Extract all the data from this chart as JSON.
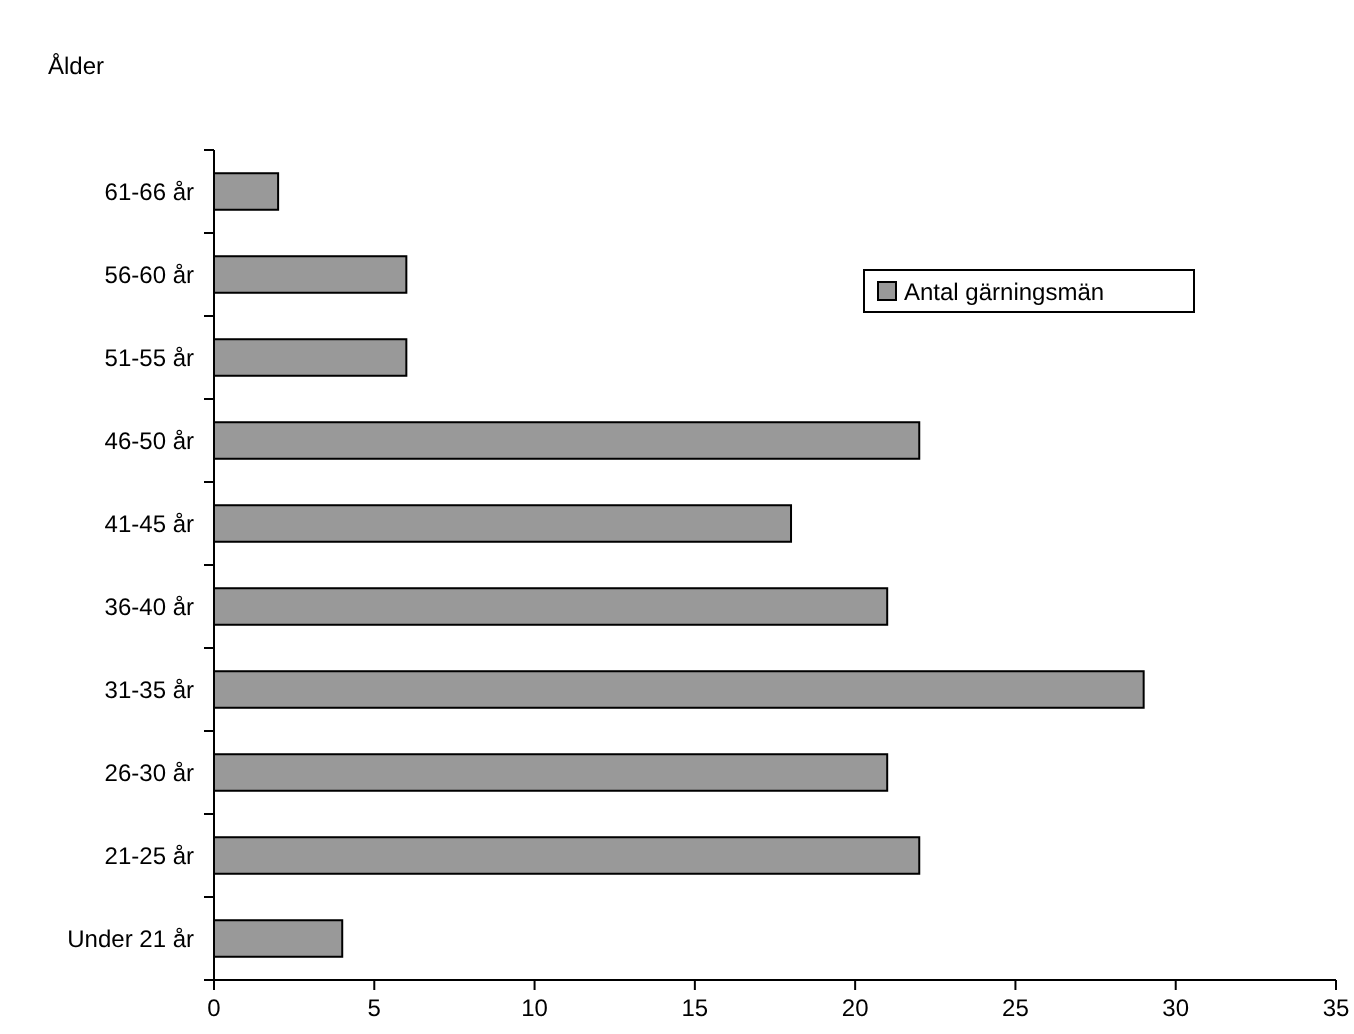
{
  "chart_data": {
    "type": "bar",
    "orientation": "horizontal",
    "ylabel": "Ålder",
    "categories": [
      "61-66 år",
      "56-60 år",
      "51-55 år",
      "46-50 år",
      "41-45 år",
      "36-40 år",
      "31-35 år",
      "26-30 år",
      "21-25 år",
      "Under 21 år"
    ],
    "series": [
      {
        "name": "Antal gärningsmän",
        "color": "#999999",
        "values": [
          2,
          6,
          6,
          22,
          18,
          21,
          29,
          21,
          22,
          4
        ]
      }
    ],
    "xlim": [
      0,
      35
    ],
    "xticks": [
      0,
      5,
      10,
      15,
      20,
      25,
      30,
      35
    ],
    "grid": false,
    "legend": "top right"
  }
}
